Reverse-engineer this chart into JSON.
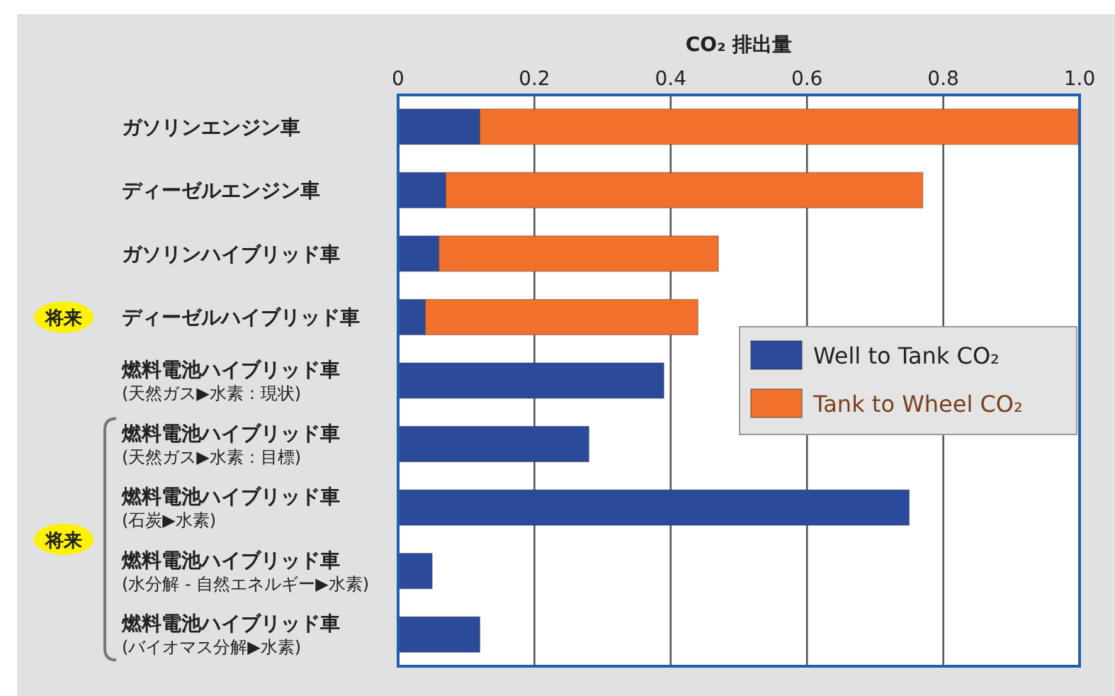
{
  "chart_data": {
    "type": "bar",
    "orientation": "horizontal",
    "stacked": true,
    "title": "CO₂ 排出量",
    "categories": [
      "ガソリンエンジン車",
      "ディーゼルエンジン車",
      "ガソリンハイブリッド車",
      "ディーゼルハイブリッド車",
      "燃料電池ハイブリッド車\n(天然ガス▶水素：現状)",
      "燃料電池ハイブリッド車\n(天然ガス▶水素：目標)",
      "燃料電池ハイブリッド車\n(石炭▶水素)",
      "燃料電池ハイブリッド車\n(水分解 - 自然エネルギー▶水素)",
      "燃料電池ハイブリッド車\n(バイオマス分解▶水素)"
    ],
    "series": [
      {
        "name": "Well to Tank CO₂",
        "color": "#2b4a9a",
        "values": [
          0.12,
          0.07,
          0.06,
          0.04,
          0.39,
          0.28,
          0.75,
          0.05,
          0.12
        ]
      },
      {
        "name": "Tank to Wheel CO₂",
        "color": "#f0702c",
        "values": [
          0.88,
          0.7,
          0.41,
          0.4,
          null,
          null,
          null,
          null,
          null
        ]
      }
    ],
    "xlim": [
      0,
      1.0
    ],
    "xticks": [
      0,
      0.2,
      0.4,
      0.6,
      0.8,
      {
        "value": 1.0,
        "label": "1.0"
      }
    ],
    "grid": "x",
    "legend": "right",
    "annotations": [
      "将来",
      "将来"
    ]
  }
}
